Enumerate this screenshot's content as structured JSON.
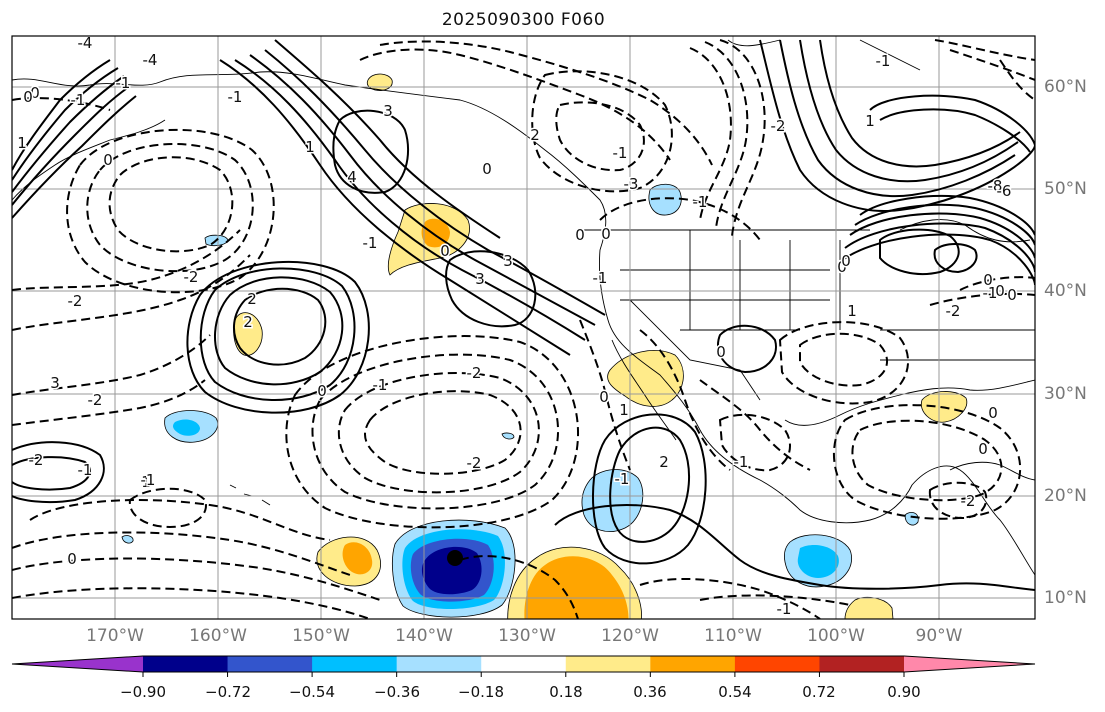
{
  "title": "2025090300 F060",
  "map": {
    "longitude_labels": [
      "170°W",
      "160°W",
      "150°W",
      "140°W",
      "130°W",
      "120°W",
      "110°W",
      "100°W",
      "90°W"
    ],
    "latitude_labels": [
      "60°N",
      "50°N",
      "40°N",
      "30°N",
      "20°N",
      "10°N"
    ],
    "contour_labels": [
      "-4",
      "-1",
      "0",
      "1",
      "0",
      "-1",
      "-4",
      "4",
      "3",
      "0",
      "-1",
      "2",
      "-1",
      "-1",
      "3",
      "1",
      "0",
      "-2",
      "3",
      "0",
      "-2",
      "3",
      "-2",
      "-2",
      "-1",
      "1",
      "2",
      "2",
      "-2",
      "-2",
      "-1",
      "2",
      "0",
      "-1",
      "1",
      "-3",
      "-8",
      "0",
      "0",
      "-1",
      "0",
      "-2",
      "1",
      "0",
      "-1",
      "0",
      "-1",
      "-1",
      "0",
      "-2",
      "0",
      "-1",
      "0",
      "0",
      "0",
      "-2",
      "1",
      "-1",
      "-2",
      "0",
      "-1",
      "0",
      "-6"
    ],
    "contour_styles": {
      "positive": "solid",
      "negative": "dashed",
      "color": "#000000"
    }
  },
  "colorbar": {
    "ticks": [
      "−0.90",
      "−0.72",
      "−0.54",
      "−0.36",
      "−0.18",
      "0.18",
      "0.36",
      "0.54",
      "0.72",
      "0.90"
    ],
    "colors": [
      "#9933cc",
      "#00008b",
      "#3355cc",
      "#00bfff",
      "#a6e0ff",
      "#ffffff",
      "#ffeb8a",
      "#ffa500",
      "#ff4500",
      "#b22222",
      "#ff88aa"
    ]
  }
}
